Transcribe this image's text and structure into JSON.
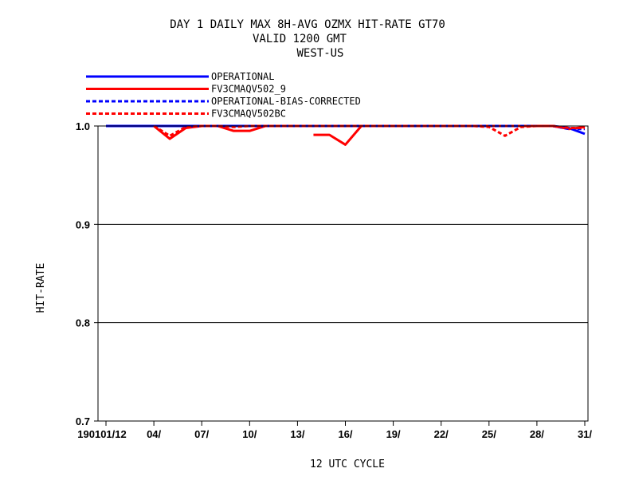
{
  "chart_data": {
    "type": "line",
    "title": [
      "DAY 1 DAILY MAX   8H-AVG OZMX HIT-RATE GT70",
      "VALID 1200 GMT",
      "WEST-US"
    ],
    "xlabel": "12 UTC CYCLE",
    "ylabel": "HIT-RATE",
    "ylim": [
      0.7,
      1.0
    ],
    "yticks": [
      {
        "value": 0.7,
        "label": "0.7"
      },
      {
        "value": 0.8,
        "label": "0.8"
      },
      {
        "value": 0.9,
        "label": "0.9"
      },
      {
        "value": 1.0,
        "label": "1.0"
      }
    ],
    "xlim": [
      0.5,
      31.2
    ],
    "xticks": [
      {
        "day": 1,
        "label": "190101/12"
      },
      {
        "day": 4,
        "label": "04/"
      },
      {
        "day": 7,
        "label": "07/"
      },
      {
        "day": 10,
        "label": "10/"
      },
      {
        "day": 13,
        "label": "13/"
      },
      {
        "day": 16,
        "label": "16/"
      },
      {
        "day": 19,
        "label": "19/"
      },
      {
        "day": 22,
        "label": "22/"
      },
      {
        "day": 25,
        "label": "25/"
      },
      {
        "day": 28,
        "label": "28/"
      },
      {
        "day": 31,
        "label": "31/"
      }
    ],
    "grid_y": true,
    "legend_position": "top-left",
    "series": [
      {
        "name": "OPERATIONAL",
        "color": "#0000ff",
        "dash": false,
        "points": [
          [
            1,
            1.0
          ],
          [
            4,
            1.0
          ],
          [
            5,
            1.0
          ],
          [
            6,
            1.0
          ],
          [
            7,
            1.0
          ],
          [
            8,
            1.0
          ],
          [
            9,
            1.0
          ],
          [
            10,
            1.0
          ],
          [
            11,
            1.0
          ],
          [
            12,
            1.0
          ],
          [
            13,
            1.0
          ],
          [
            14,
            1.0
          ],
          [
            15,
            1.0
          ],
          [
            16,
            1.0
          ],
          [
            17,
            1.0
          ],
          [
            18,
            1.0
          ],
          [
            19,
            1.0
          ],
          [
            20,
            1.0
          ],
          [
            21,
            1.0
          ],
          [
            22,
            1.0
          ],
          [
            23,
            1.0
          ],
          [
            24,
            1.0
          ],
          [
            25,
            1.0
          ],
          [
            26,
            1.0
          ],
          [
            27,
            1.0
          ],
          [
            28,
            1.0
          ],
          [
            29,
            1.0
          ],
          [
            30,
            0.998
          ],
          [
            31,
            0.992
          ]
        ]
      },
      {
        "name": "FV3CMAQV502_9",
        "color": "#ff0000",
        "dash": false,
        "points": [
          [
            4,
            1.0
          ],
          [
            5,
            0.987
          ],
          [
            6,
            0.998
          ],
          [
            7,
            1.0
          ],
          [
            8,
            1.0
          ],
          [
            9,
            0.995
          ],
          [
            10,
            0.995
          ],
          [
            11,
            1.0
          ],
          [
            12,
            1.0
          ],
          [
            13,
            1.0
          ],
          [
            null,
            null
          ],
          [
            14,
            0.991
          ],
          [
            15,
            0.991
          ],
          [
            16,
            0.981
          ],
          [
            17,
            1.0
          ],
          [
            18,
            1.0
          ],
          [
            19,
            1.0
          ],
          [
            20,
            1.0
          ],
          [
            null,
            null
          ],
          [
            21,
            1.0
          ],
          [
            22,
            1.0
          ],
          [
            23,
            1.0
          ],
          [
            24,
            1.0
          ],
          [
            25,
            1.0
          ],
          [
            26,
            1.0
          ],
          [
            27,
            1.0
          ],
          [
            28,
            1.0
          ],
          [
            29,
            1.0
          ],
          [
            30,
            0.997
          ],
          [
            31,
            0.999
          ]
        ]
      },
      {
        "name": "OPERATIONAL-BIAS-CORRECTED",
        "color": "#0000ff",
        "dash": true,
        "points": [
          [
            1,
            1.0
          ],
          [
            4,
            1.0
          ],
          [
            5,
            1.0
          ],
          [
            6,
            1.0
          ],
          [
            7,
            1.0
          ],
          [
            8,
            1.0
          ],
          [
            9,
            1.0
          ],
          [
            10,
            1.0
          ],
          [
            11,
            1.0
          ],
          [
            12,
            1.0
          ],
          [
            13,
            1.0
          ],
          [
            14,
            1.0
          ],
          [
            15,
            1.0
          ],
          [
            16,
            1.0
          ],
          [
            17,
            1.0
          ],
          [
            18,
            1.0
          ],
          [
            19,
            1.0
          ],
          [
            20,
            1.0
          ],
          [
            21,
            1.0
          ],
          [
            22,
            1.0
          ],
          [
            23,
            1.0
          ],
          [
            24,
            1.0
          ],
          [
            25,
            1.0
          ],
          [
            26,
            1.0
          ],
          [
            27,
            1.0
          ],
          [
            28,
            1.0
          ],
          [
            29,
            1.0
          ],
          [
            30,
            0.997
          ],
          [
            31,
            0.997
          ]
        ]
      },
      {
        "name": "FV3CMAQV502BC",
        "color": "#ff0000",
        "dash": true,
        "points": [
          [
            4,
            1.0
          ],
          [
            5,
            0.99
          ],
          [
            6,
            0.999
          ],
          [
            7,
            1.0
          ],
          [
            8,
            1.0
          ],
          [
            9,
            0.999
          ],
          [
            10,
            1.0
          ],
          [
            11,
            1.0
          ],
          [
            12,
            1.0
          ],
          [
            13,
            1.0
          ],
          [
            14,
            1.0
          ],
          [
            15,
            1.0
          ],
          [
            16,
            1.0
          ],
          [
            17,
            1.0
          ],
          [
            18,
            1.0
          ],
          [
            19,
            1.0
          ],
          [
            20,
            1.0
          ],
          [
            21,
            1.0
          ],
          [
            22,
            1.0
          ],
          [
            23,
            1.0
          ],
          [
            24,
            1.0
          ],
          [
            25,
            0.999
          ],
          [
            26,
            0.99
          ],
          [
            27,
            0.999
          ],
          [
            28,
            1.0
          ],
          [
            29,
            1.0
          ],
          [
            30,
            0.998
          ],
          [
            31,
            0.998
          ]
        ]
      }
    ]
  }
}
